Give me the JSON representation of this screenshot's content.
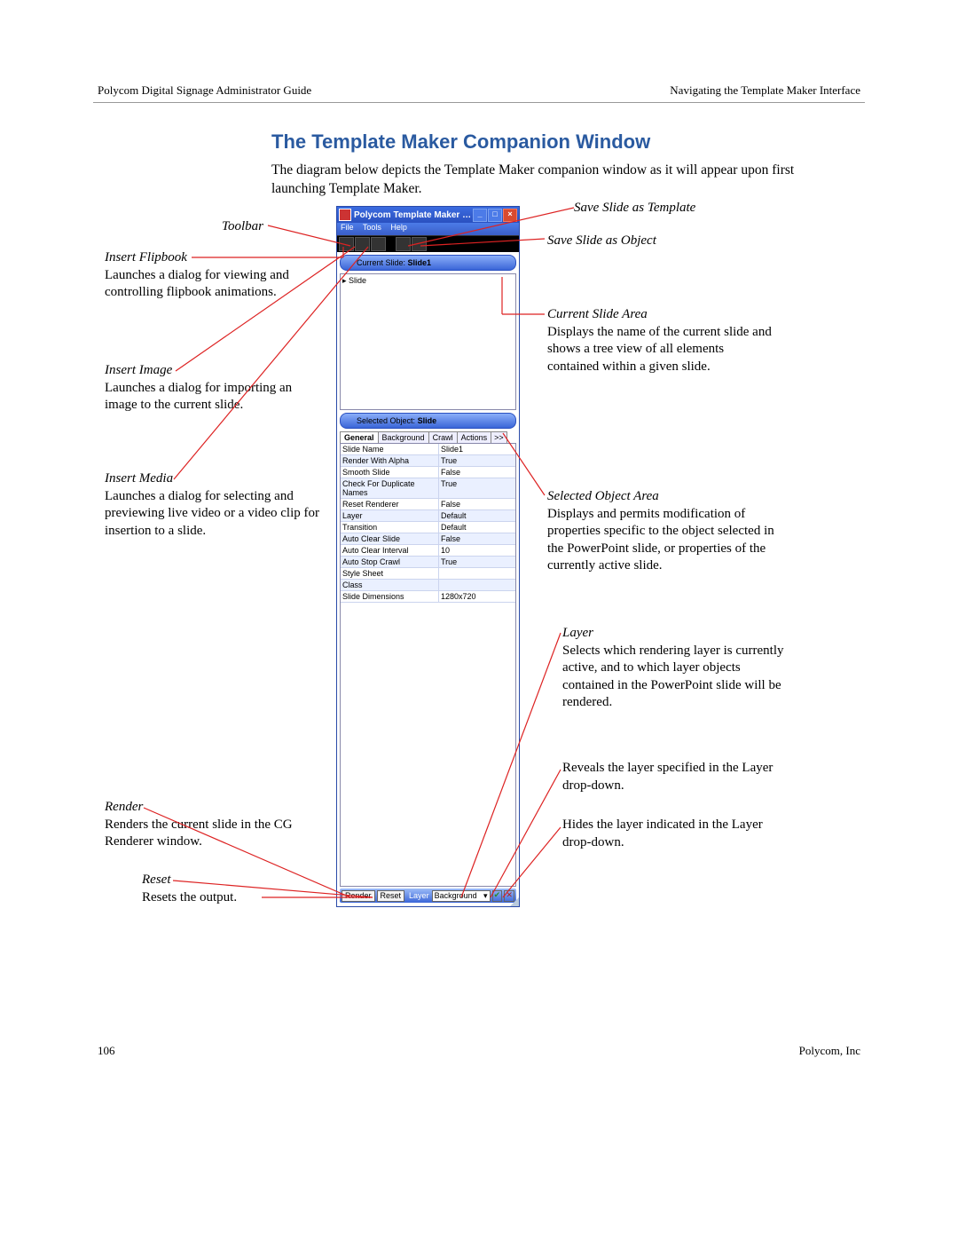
{
  "header": {
    "left": "Polycom Digital Signage Administrator Guide",
    "right": "Navigating the Template Maker Interface"
  },
  "title": "The Template Maker Companion Window",
  "intro": "The diagram below depicts the Template Maker companion window as it will appear upon first launching Template Maker.",
  "footer": {
    "page": "106",
    "company": "Polycom, Inc"
  },
  "callouts": {
    "toolbar": "Toolbar",
    "flipbook_t": "Insert Flipbook",
    "flipbook_b": "Launches a dialog for viewing and controlling flipbook animations.",
    "image_t": "Insert Image",
    "image_b": "Launches a dialog for importing an image to the current slide.",
    "media_t": "Insert Media",
    "media_b": "Launches a dialog for selecting and previewing live video or a video clip for insertion to a slide.",
    "render_t": "Render",
    "render_b": "Renders the current slide in the CG Renderer window.",
    "reset_t": "Reset",
    "reset_b": "Resets the output.",
    "save_tpl": "Save Slide as Template",
    "save_obj": "Save Slide as Object",
    "curslide_t": "Current Slide Area",
    "curslide_b": "Displays the name of the current slide and shows a tree view of all elements contained within a given slide.",
    "selobj_t": "Selected Object Area",
    "selobj_b": "Displays and permits modification of properties specific to the object selected in the PowerPoint slide, or properties of the currently active slide.",
    "layer_t": "Layer",
    "layer_b": "Selects which rendering layer is currently active, and to which layer objects contained in the PowerPoint slide will be rendered.",
    "reveal": "Reveals the layer specified in the Layer drop-down.",
    "hide": "Hides the layer indicated in the Layer drop-down."
  },
  "win": {
    "title": "Polycom Template Maker …",
    "menu": {
      "file": "File",
      "tools": "Tools",
      "help": "Help"
    },
    "cur_label": "Current Slide:",
    "cur_value": "Slide1",
    "tree_item": "Slide",
    "sel_label": "Selected Object:",
    "sel_value": "Slide",
    "tabs": {
      "general": "General",
      "background": "Background",
      "crawl": "Crawl",
      "actions": "Actions",
      "more": ">>"
    },
    "props": [
      [
        "Slide Name",
        "Slide1"
      ],
      [
        "Render With Alpha",
        "True"
      ],
      [
        "Smooth Slide",
        "False"
      ],
      [
        "Check For Duplicate Names",
        "True"
      ],
      [
        "Reset Renderer",
        "False"
      ],
      [
        "Layer",
        "Default"
      ],
      [
        "Transition",
        "Default"
      ],
      [
        "Auto Clear Slide",
        "False"
      ],
      [
        "Auto Clear Interval",
        "10"
      ],
      [
        "Auto Stop Crawl",
        "True"
      ],
      [
        "Style Sheet",
        ""
      ],
      [
        "Class",
        ""
      ],
      [
        "Slide Dimensions",
        "1280x720"
      ]
    ],
    "bottom": {
      "render": "Render",
      "reset": "Reset",
      "layer": "Layer",
      "sel": "Background",
      "check": "✔",
      "x": "✕"
    }
  }
}
